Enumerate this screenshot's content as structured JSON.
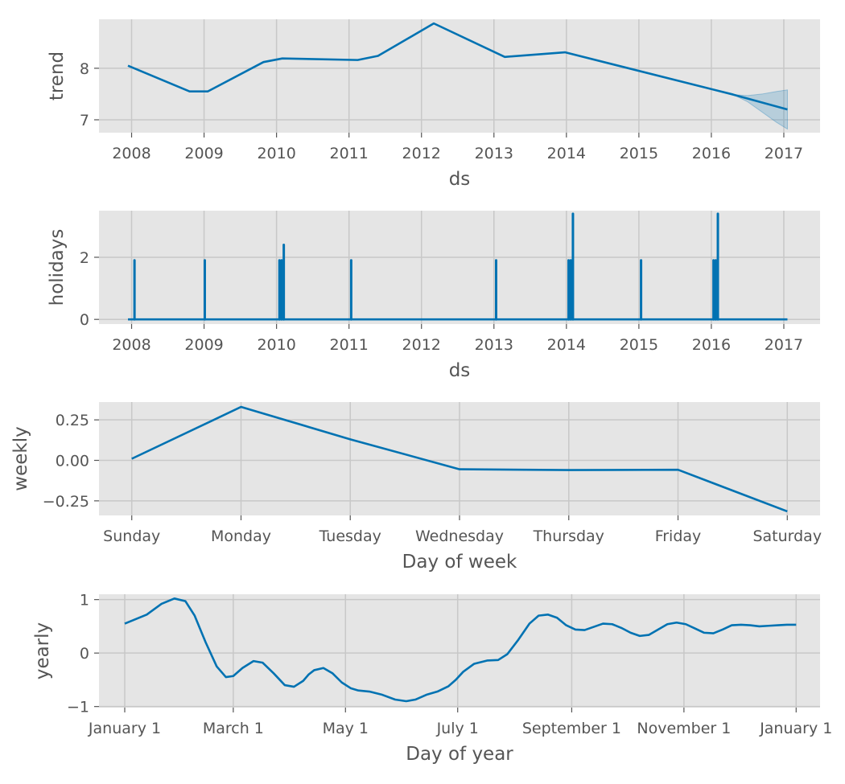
{
  "colors": {
    "panel_bg": "#e5e5e5",
    "grid": "#c8c8c8",
    "line": "#0072b2",
    "band": "#0072b2",
    "tick": "#555555"
  },
  "chart_data": [
    {
      "id": "trend",
      "type": "line",
      "xlabel": "ds",
      "ylabel": "trend",
      "x_kind": "year",
      "xlim": [
        2007.55,
        2017.5
      ],
      "ylim": [
        6.75,
        8.95
      ],
      "xticks": [
        2008,
        2009,
        2010,
        2011,
        2012,
        2013,
        2014,
        2015,
        2016,
        2017
      ],
      "xtick_labels": [
        "2008",
        "2009",
        "2010",
        "2011",
        "2012",
        "2013",
        "2014",
        "2015",
        "2016",
        "2017"
      ],
      "yticks": [
        7,
        8
      ],
      "ytick_labels": [
        "7",
        "8"
      ],
      "grid": true,
      "series": [
        {
          "x": [
            2007.95,
            2008.8,
            2009.05,
            2009.82,
            2010.08,
            2011.12,
            2011.4,
            2012.17,
            2013.15,
            2013.98,
            2016.3,
            2017.05
          ],
          "y": [
            8.05,
            7.55,
            7.55,
            8.12,
            8.19,
            8.16,
            8.24,
            8.87,
            8.22,
            8.31,
            7.49,
            7.2
          ]
        }
      ],
      "uncertainty_band": {
        "x": [
          2016.3,
          2016.5,
          2016.7,
          2016.9,
          2017.05
        ],
        "lower": [
          7.49,
          7.35,
          7.15,
          6.95,
          6.82
        ],
        "upper": [
          7.49,
          7.47,
          7.5,
          7.55,
          7.58
        ]
      }
    },
    {
      "id": "holidays",
      "type": "line",
      "xlabel": "ds",
      "ylabel": "holidays",
      "x_kind": "year",
      "xlim": [
        2007.55,
        2017.5
      ],
      "ylim": [
        -0.15,
        3.5
      ],
      "xticks": [
        2008,
        2009,
        2010,
        2011,
        2012,
        2013,
        2014,
        2015,
        2016,
        2017
      ],
      "xtick_labels": [
        "2008",
        "2009",
        "2010",
        "2011",
        "2012",
        "2013",
        "2014",
        "2015",
        "2016",
        "2017"
      ],
      "yticks": [
        0,
        2
      ],
      "ytick_labels": [
        "0",
        "2"
      ],
      "grid": true,
      "baseline": {
        "x": [
          2007.95,
          2017.05
        ],
        "y": 0
      },
      "spikes": [
        {
          "x": 2008.04,
          "y": 1.9
        },
        {
          "x": 2009.01,
          "y": 1.9
        },
        {
          "x": 2010.04,
          "y": 1.9
        },
        {
          "x": 2010.07,
          "y": 1.9
        },
        {
          "x": 2010.1,
          "y": 2.4
        },
        {
          "x": 2011.03,
          "y": 1.9
        },
        {
          "x": 2013.03,
          "y": 1.9
        },
        {
          "x": 2014.03,
          "y": 1.9
        },
        {
          "x": 2014.06,
          "y": 1.9
        },
        {
          "x": 2014.09,
          "y": 3.4
        },
        {
          "x": 2015.03,
          "y": 1.9
        },
        {
          "x": 2016.03,
          "y": 1.9
        },
        {
          "x": 2016.06,
          "y": 1.9
        },
        {
          "x": 2016.09,
          "y": 3.4
        }
      ]
    },
    {
      "id": "weekly",
      "type": "line",
      "xlabel": "Day of week",
      "ylabel": "weekly",
      "x_kind": "index",
      "xlim": [
        -0.3,
        6.3
      ],
      "ylim": [
        -0.34,
        0.36
      ],
      "xticks": [
        0,
        1,
        2,
        3,
        4,
        5,
        6
      ],
      "xtick_labels": [
        "Sunday",
        "Monday",
        "Tuesday",
        "Wednesday",
        "Thursday",
        "Friday",
        "Saturday"
      ],
      "yticks": [
        -0.25,
        0,
        0.25
      ],
      "ytick_labels": [
        "−0.25",
        "0.00",
        "0.25"
      ],
      "grid": true,
      "series": [
        {
          "x": [
            0,
            1,
            2,
            3,
            4,
            5,
            6
          ],
          "y": [
            0.01,
            0.33,
            0.13,
            -0.055,
            -0.06,
            -0.058,
            -0.315
          ]
        }
      ]
    },
    {
      "id": "yearly",
      "type": "line",
      "xlabel": "Day of year",
      "ylabel": "yearly",
      "x_kind": "day_of_year",
      "xlim": [
        -14,
        378
      ],
      "ylim": [
        -1.02,
        1.1
      ],
      "xticks": [
        0,
        59,
        120,
        181,
        243,
        304,
        365
      ],
      "xtick_labels": [
        "January 1",
        "March 1",
        "May 1",
        "July 1",
        "September 1",
        "November 1",
        "January 1"
      ],
      "yticks": [
        -1,
        0,
        1
      ],
      "ytick_labels": [
        "−1",
        "0",
        "1"
      ],
      "grid": true,
      "series": [
        {
          "x": [
            0,
            12,
            20,
            27,
            33,
            38,
            44,
            50,
            55,
            59,
            64,
            70,
            75,
            81,
            87,
            92,
            97,
            100,
            103,
            108,
            113,
            118,
            123,
            127,
            133,
            140,
            147,
            153,
            158,
            164,
            170,
            176,
            180,
            184,
            190,
            197,
            203,
            208,
            214,
            220,
            225,
            230,
            235,
            240,
            245,
            250,
            255,
            260,
            265,
            270,
            275,
            280,
            285,
            290,
            295,
            300,
            305,
            310,
            315,
            320,
            325,
            330,
            335,
            340,
            345,
            350,
            355,
            360,
            365
          ],
          "y": [
            0.55,
            0.72,
            0.92,
            1.02,
            0.97,
            0.7,
            0.2,
            -0.25,
            -0.45,
            -0.43,
            -0.28,
            -0.15,
            -0.18,
            -0.38,
            -0.6,
            -0.63,
            -0.52,
            -0.4,
            -0.32,
            -0.28,
            -0.38,
            -0.55,
            -0.66,
            -0.7,
            -0.72,
            -0.78,
            -0.87,
            -0.9,
            -0.87,
            -0.78,
            -0.72,
            -0.62,
            -0.5,
            -0.35,
            -0.2,
            -0.14,
            -0.13,
            -0.02,
            0.25,
            0.55,
            0.7,
            0.72,
            0.66,
            0.52,
            0.44,
            0.43,
            0.49,
            0.55,
            0.54,
            0.47,
            0.38,
            0.32,
            0.34,
            0.44,
            0.54,
            0.57,
            0.54,
            0.46,
            0.38,
            0.37,
            0.44,
            0.52,
            0.53,
            0.52,
            0.5,
            0.51,
            0.52,
            0.53,
            0.53
          ]
        }
      ]
    }
  ]
}
